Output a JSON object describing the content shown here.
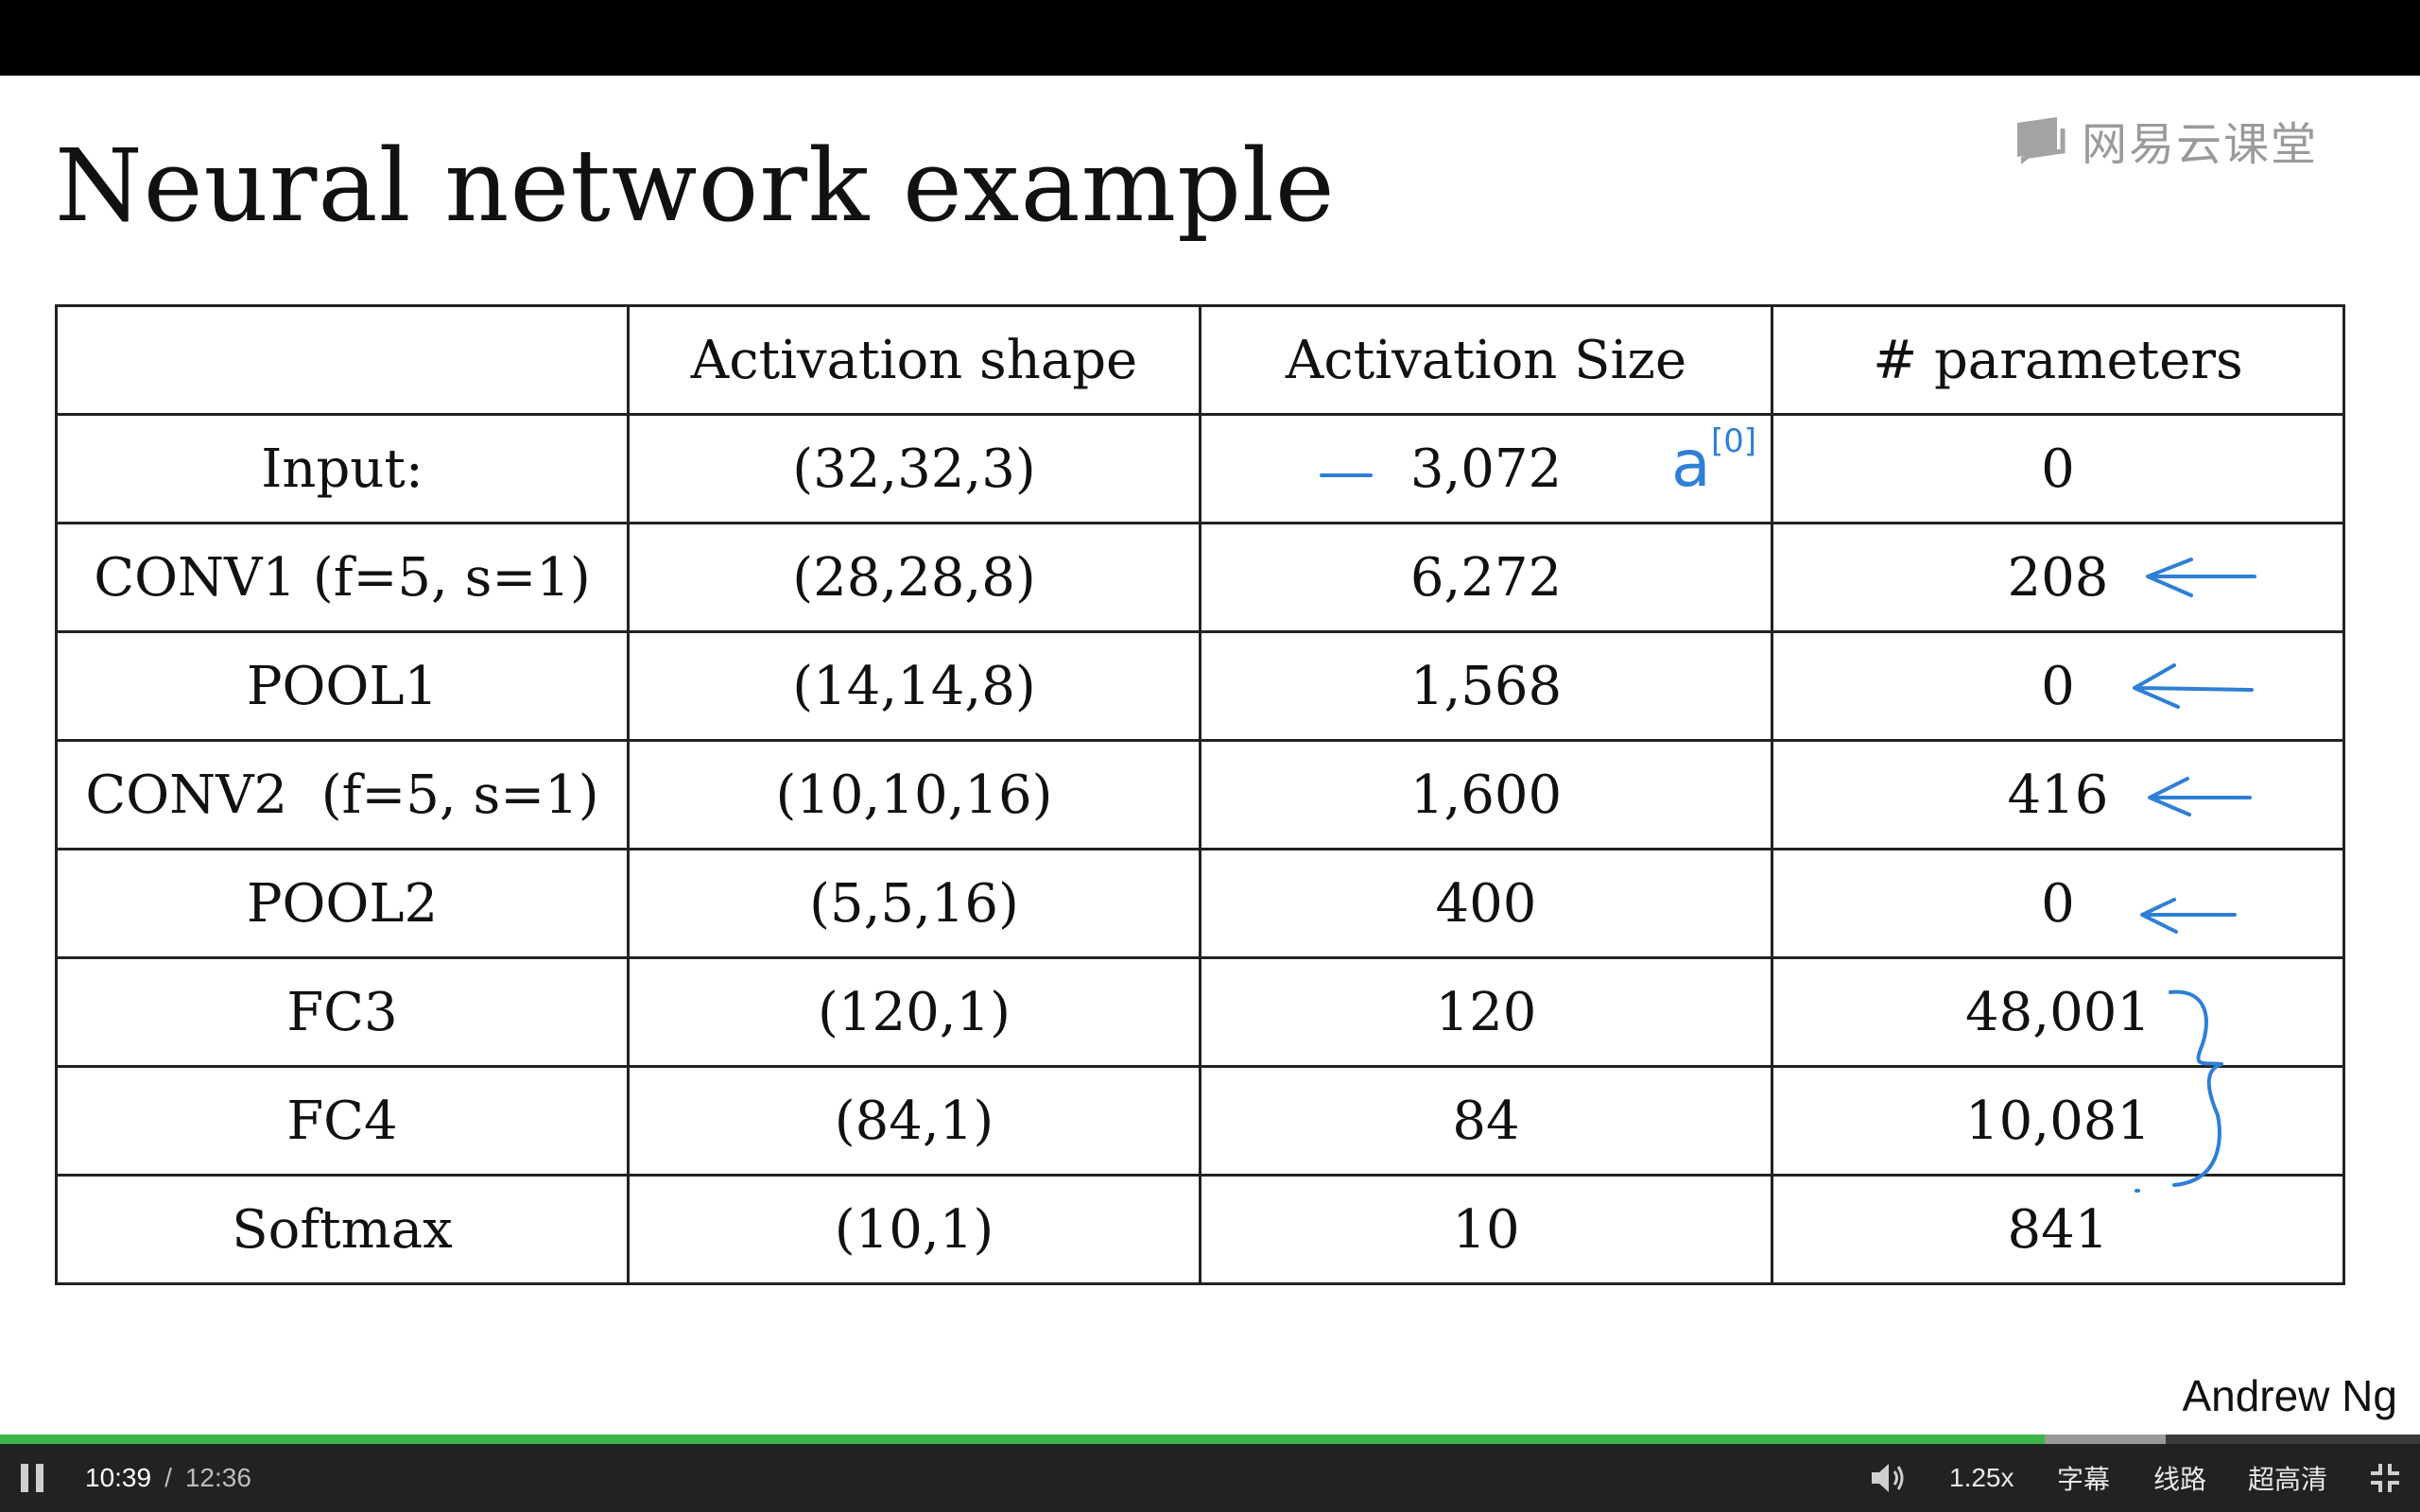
{
  "slide": {
    "title": "Neural network example",
    "logo_text": "网易云课堂",
    "author": "Andrew Ng",
    "table": {
      "headers": [
        "",
        "Activation shape",
        "Activation Size",
        "# parameters"
      ],
      "rows": [
        [
          "Input:",
          "(32,32,3)",
          "3,072",
          "0"
        ],
        [
          "CONV1 (f=5, s=1)",
          "(28,28,8)",
          "6,272",
          "208"
        ],
        [
          "POOL1",
          "(14,14,8)",
          "1,568",
          "0"
        ],
        [
          "CONV2  (f=5, s=1)",
          "(10,10,16)",
          "1,600",
          "416"
        ],
        [
          "POOL2",
          "(5,5,16)",
          "400",
          "0"
        ],
        [
          "FC3",
          "(120,1)",
          "120",
          "48,001"
        ],
        [
          "FC4",
          "(84,1)",
          "84",
          "10,081"
        ],
        [
          "Softmax",
          "(10,1)",
          "10",
          "841"
        ]
      ]
    },
    "annotation": {
      "symbol": "a",
      "superscript": "[0]",
      "ink_color": "#2f7fd6"
    }
  },
  "player": {
    "time_current": "10:39",
    "time_separator": "/",
    "time_total": "12:36",
    "speed": "1.25x",
    "subtitles_label": "字幕",
    "route_label": "线路",
    "quality_label": "超高清",
    "progress_played": 0.845,
    "progress_buffered": 0.895,
    "colors": {
      "played": "#3bb54a",
      "bar": "#222222"
    },
    "icons": {
      "play_pause": "pause-icon",
      "volume": "volume-icon",
      "fullscreen": "exit-fullscreen-icon"
    }
  }
}
